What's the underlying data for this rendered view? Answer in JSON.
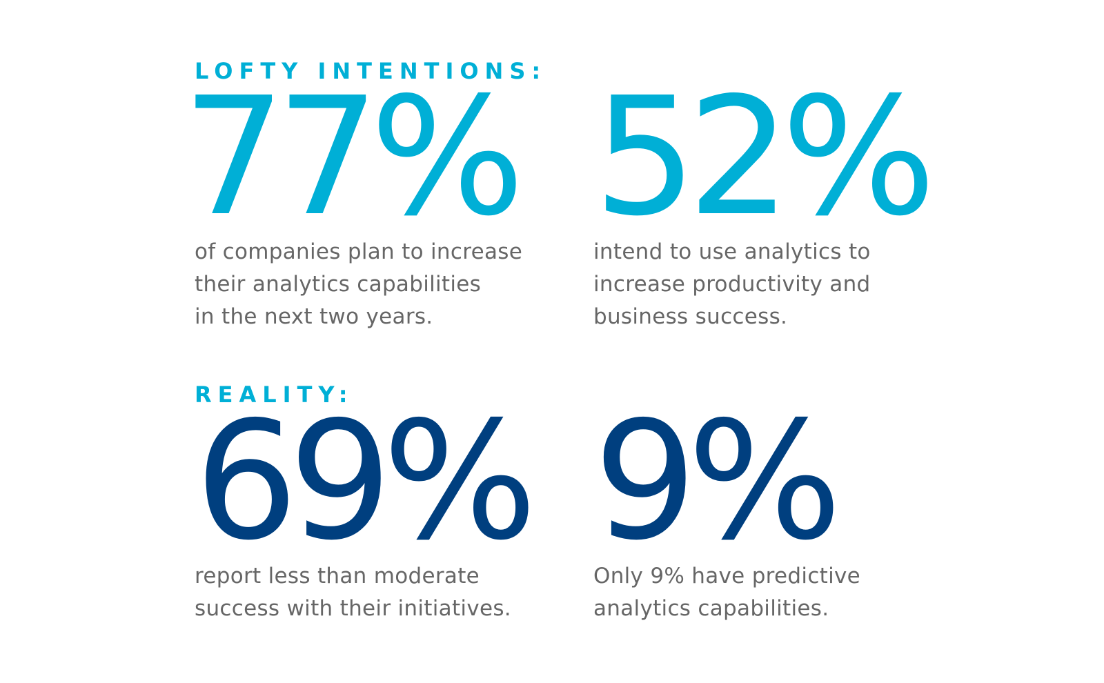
{
  "colors": {
    "light_blue": "#00afd6",
    "dark_blue": "#003f7f",
    "body_text": "#666666"
  },
  "sections": {
    "intentions": {
      "heading": "LOFTY INTENTIONS:",
      "stats": [
        {
          "value": "77%",
          "description": "of companies plan to increase\ntheir analytics capabilities\nin the next two years."
        },
        {
          "value": "52%",
          "description": "intend to use analytics to\nincrease productivity and\nbusiness success."
        }
      ]
    },
    "reality": {
      "heading": "REALITY:",
      "stats": [
        {
          "value": "69%",
          "description": "report less than moderate\nsuccess with their initiatives."
        },
        {
          "value": "9%",
          "description": "Only 9% have predictive\nanalytics capabilities."
        }
      ]
    }
  }
}
